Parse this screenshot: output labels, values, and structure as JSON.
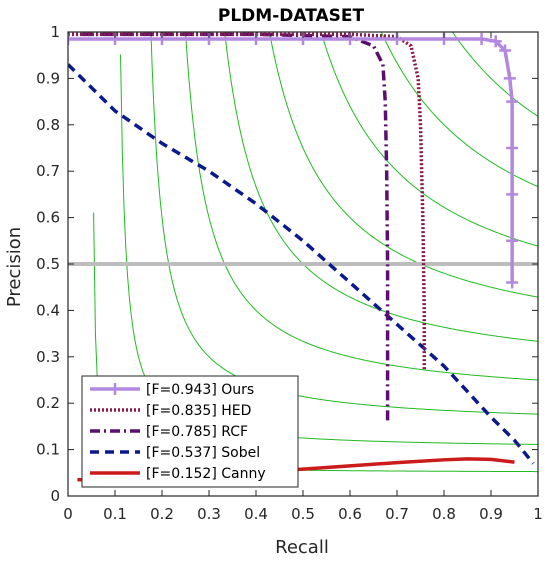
{
  "chart_data": {
    "type": "line",
    "title": "PLDM-DATASET",
    "xlabel": "Recall",
    "ylabel": "Precision",
    "xlim": [
      0,
      1
    ],
    "ylim": [
      0,
      1
    ],
    "xticks": [
      "0",
      "0.1",
      "0.2",
      "0.3",
      "0.4",
      "0.5",
      "0.6",
      "0.7",
      "0.8",
      "0.9",
      "1"
    ],
    "yticks": [
      "0",
      "0.1",
      "0.2",
      "0.3",
      "0.4",
      "0.5",
      "0.6",
      "0.7",
      "0.8",
      "0.9",
      "1"
    ],
    "grid": false,
    "legend_position": "bottom-left",
    "reference_line": {
      "y": 0.5,
      "color": "#bdbdbd"
    },
    "iso_f_curves": {
      "color": "#22bb22",
      "f_values": [
        0.1,
        0.2,
        0.3,
        0.4,
        0.5,
        0.6,
        0.7,
        0.8,
        0.9
      ]
    },
    "series": [
      {
        "name": "[F=0.943] Ours",
        "color": "#b389e0",
        "line_style": "solid",
        "marker": "plus",
        "x": [
          0.0,
          0.1,
          0.2,
          0.3,
          0.4,
          0.5,
          0.6,
          0.7,
          0.8,
          0.88,
          0.91,
          0.93,
          0.94,
          0.945,
          0.945,
          0.945,
          0.945,
          0.945
        ],
        "y": [
          0.985,
          0.985,
          0.985,
          0.985,
          0.985,
          0.985,
          0.985,
          0.985,
          0.985,
          0.985,
          0.98,
          0.96,
          0.9,
          0.85,
          0.75,
          0.65,
          0.55,
          0.46
        ]
      },
      {
        "name": "[F=0.835] HED",
        "color": "#8b1a4a",
        "line_style": "dotted",
        "x": [
          0.0,
          0.2,
          0.4,
          0.6,
          0.7,
          0.73,
          0.745,
          0.75,
          0.755,
          0.758,
          0.758
        ],
        "y": [
          0.995,
          0.995,
          0.995,
          0.995,
          0.99,
          0.97,
          0.9,
          0.8,
          0.6,
          0.4,
          0.27
        ]
      },
      {
        "name": "[F=0.785] RCF",
        "color": "#5b0f6e",
        "line_style": "dashdot",
        "x": [
          0.03,
          0.2,
          0.4,
          0.6,
          0.65,
          0.67,
          0.675,
          0.678,
          0.68,
          0.68,
          0.68
        ],
        "y": [
          0.995,
          0.995,
          0.995,
          0.99,
          0.97,
          0.93,
          0.85,
          0.7,
          0.5,
          0.3,
          0.16
        ]
      },
      {
        "name": "[F=0.537] Sobel",
        "color": "#0a1a8c",
        "line_style": "dashed",
        "x": [
          0.0,
          0.05,
          0.1,
          0.2,
          0.3,
          0.4,
          0.5,
          0.6,
          0.7,
          0.8,
          0.9,
          0.95,
          0.99
        ],
        "y": [
          0.93,
          0.88,
          0.83,
          0.76,
          0.7,
          0.63,
          0.55,
          0.46,
          0.37,
          0.28,
          0.17,
          0.12,
          0.07
        ]
      },
      {
        "name": "[F=0.152] Canny",
        "color": "#cc1b1b",
        "line_style": "solid",
        "x": [
          0.02,
          0.05,
          0.1,
          0.2,
          0.3,
          0.4,
          0.5,
          0.6,
          0.7,
          0.8,
          0.85,
          0.9,
          0.95
        ],
        "y": [
          0.035,
          0.035,
          0.037,
          0.042,
          0.047,
          0.052,
          0.058,
          0.065,
          0.072,
          0.078,
          0.08,
          0.079,
          0.073
        ]
      }
    ]
  }
}
